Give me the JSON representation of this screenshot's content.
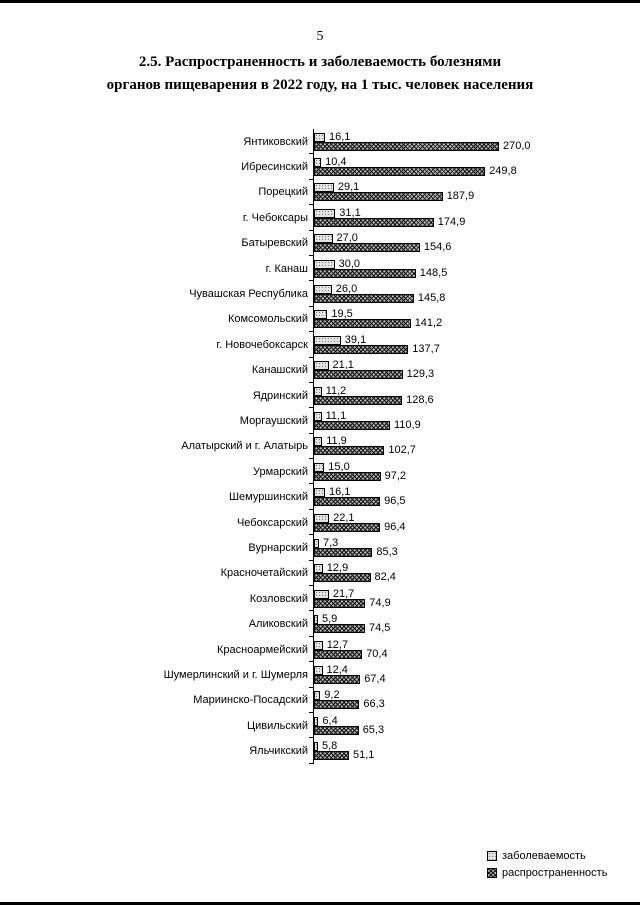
{
  "page": {
    "number": "5",
    "title_line1": "2.5. Распространенность и заболеваемость болезнями",
    "title_line2": "органов пищеварения в 2022 году, на 1 тыс. человек населения"
  },
  "chart_data": {
    "type": "bar",
    "orientation": "horizontal",
    "title": "2.5. Распространенность и заболеваемость болезнями органов пищеварения в 2022 году, на 1 тыс. человек населения",
    "xlabel": "",
    "ylabel": "",
    "xlim": [
      0,
      300
    ],
    "grid": false,
    "value_labels": true,
    "decimal_separator": ",",
    "legend_position": "bottom-right",
    "categories": [
      "Янтиковский",
      "Ибресинский",
      "Порецкий",
      "г. Чебоксары",
      "Батыревский",
      "г. Канаш",
      "Чувашская Республика",
      "Комсомольский",
      "г. Новочебоксарск",
      "Канашский",
      "Ядринский",
      "Моргаушский",
      "Алатырский и г. Алатырь",
      "Урмарский",
      "Шемуршинский",
      "Чебоксарский",
      "Вурнарский",
      "Красночетайский",
      "Козловский",
      "Аликовский",
      "Красноармейский",
      "Шумерлинский и г. Шумерля",
      "Мариинско-Посадский",
      "Цивильский",
      "Яльчикский"
    ],
    "series": [
      {
        "name": "заболеваемость",
        "values": [
          16.1,
          10.4,
          29.1,
          31.1,
          27.0,
          30.0,
          26.0,
          19.5,
          39.1,
          21.1,
          11.2,
          11.1,
          11.9,
          15.0,
          16.1,
          22.1,
          7.3,
          12.9,
          21.7,
          5.9,
          12.7,
          12.4,
          9.2,
          6.4,
          5.8
        ]
      },
      {
        "name": "распространенность",
        "values": [
          270.0,
          249.8,
          187.9,
          174.9,
          154.6,
          148.5,
          145.8,
          141.2,
          137.7,
          129.3,
          128.6,
          110.9,
          102.7,
          97.2,
          96.5,
          96.4,
          85.3,
          82.4,
          74.9,
          74.5,
          70.4,
          67.4,
          66.3,
          65.3,
          51.1
        ]
      }
    ],
    "bar_colors": {
      "заболеваемость": "#e2e2e2",
      "распространенность": "#b3b3b3"
    }
  }
}
